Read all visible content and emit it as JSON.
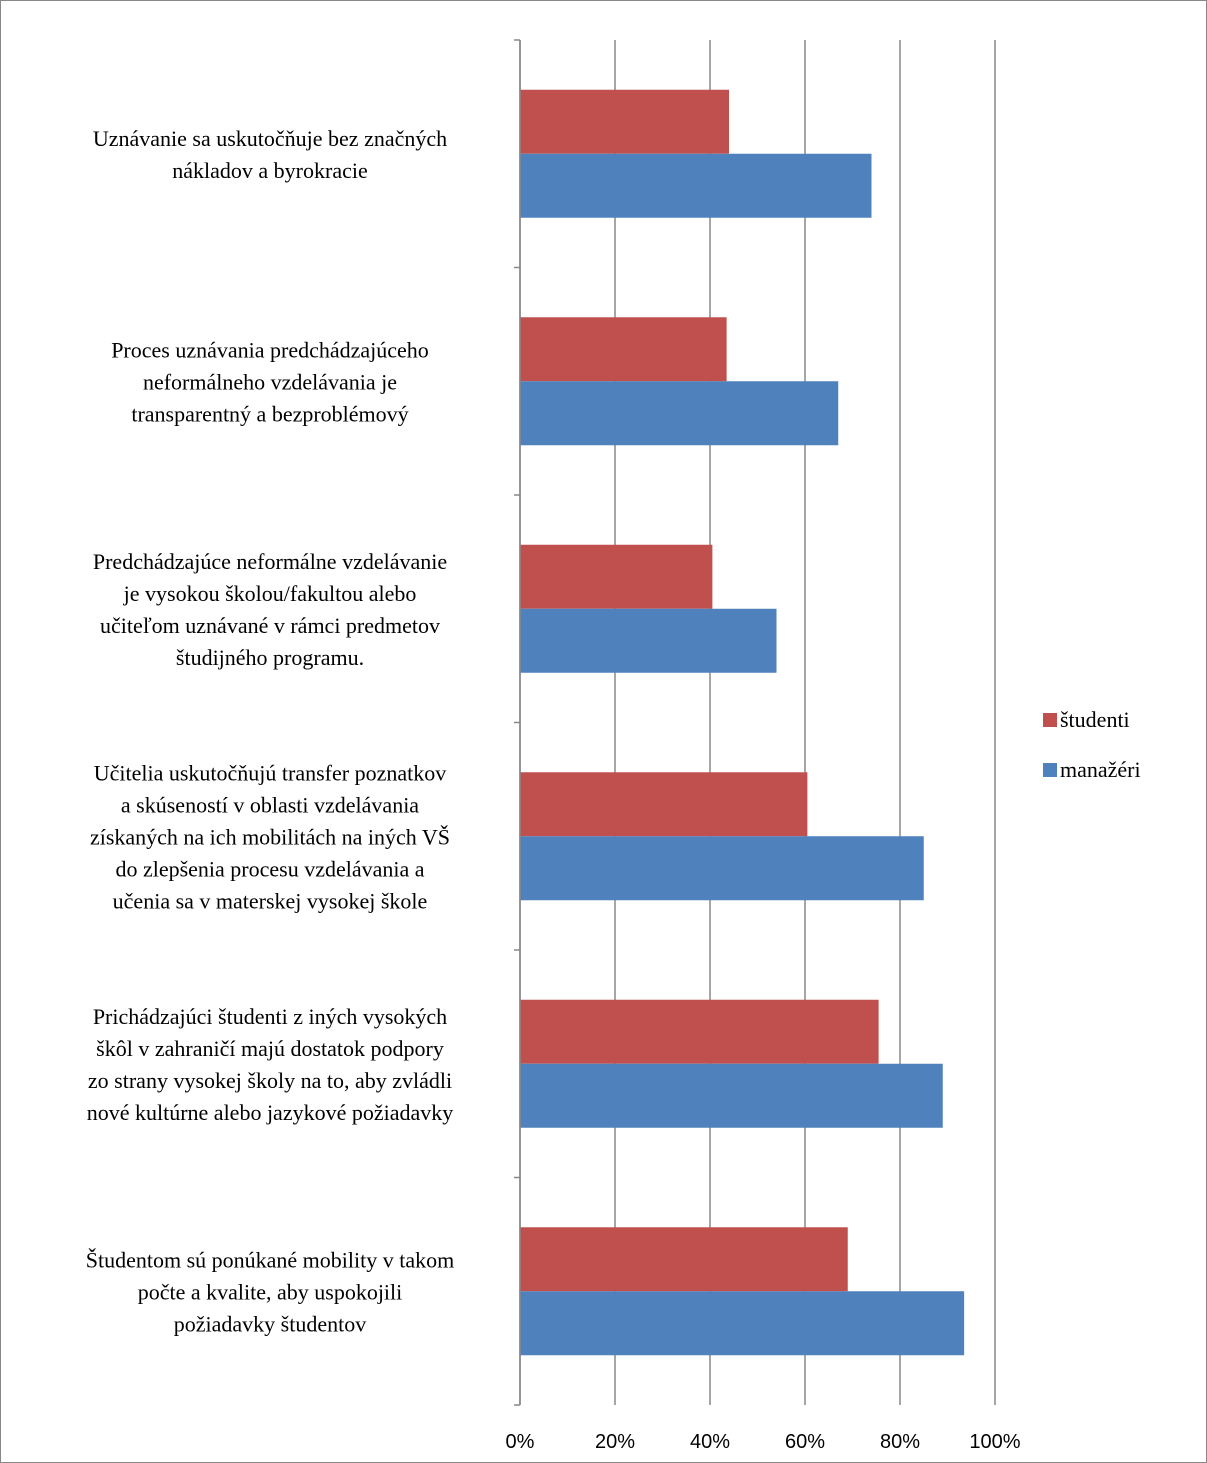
{
  "chart_data": {
    "type": "hbar",
    "categories": [
      "Uznávanie sa uskutočňuje bez značných\nnákladov a byrokracie",
      "Proces uznávania predchádzajúceho\nneformálneho vzdelávania je\ntransparentný a bezproblémový",
      "Predchádzajúce neformálne vzdelávanie\nje vysokou školou/fakultou alebo\nučiteľom uznávané v rámci predmetov\nštudijného programu.",
      "Učitelia  uskutočňujú transfer poznatkov\na skúseností v oblasti vzdelávania\nzískaných na ich mobilitách na iných VŠ\ndo zlepšenia procesu vzdelávania a\nučenia sa v materskej vysokej škole",
      "Prichádzajúci študenti z iných vysokých\nškôl v zahraničí majú dostatok podpory\nzo strany vysokej školy na to, aby zvládli\nnové kultúrne alebo jazykové požiadavky",
      "Študentom sú ponúkané mobility v takom\npočte a kvalite, aby uspokojili\npožiadavky študentov"
    ],
    "series": [
      {
        "name": "študenti",
        "color": "#c0504d",
        "values": [
          44,
          43.5,
          40.5,
          60.5,
          75.5,
          69
        ]
      },
      {
        "name": "manažéri",
        "color": "#4f81bd",
        "values": [
          74,
          67,
          54,
          85,
          89,
          93.5
        ]
      }
    ],
    "xlim": [
      0,
      100
    ],
    "xticks": [
      {
        "value": 0,
        "label": "0%"
      },
      {
        "value": 20,
        "label": "20%"
      },
      {
        "value": 40,
        "label": "40%"
      },
      {
        "value": 60,
        "label": "60%"
      },
      {
        "value": 80,
        "label": "80%"
      },
      {
        "value": 100,
        "label": "100%"
      }
    ],
    "grid": true,
    "legend": "right"
  }
}
